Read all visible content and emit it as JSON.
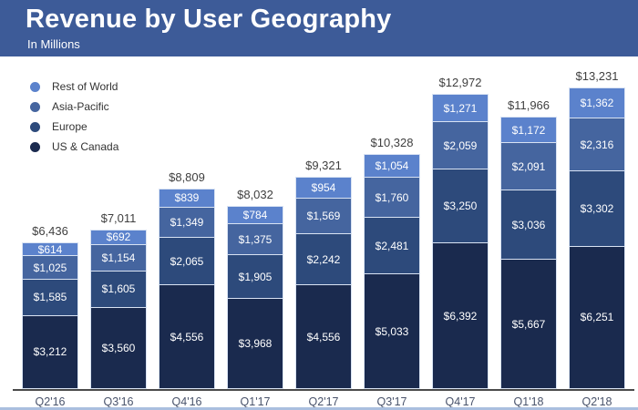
{
  "header": {
    "title": "Revenue by User Geography",
    "subtitle": "In Millions"
  },
  "colors": {
    "header_bg": "#3d5b98",
    "axis_line": "#4a4a4a",
    "total_label": "#3f3f3f",
    "category_label": "#49536b",
    "segment_border": "#d9e3f3",
    "bottom_strip": "#aabfdf"
  },
  "chart_data": {
    "type": "bar",
    "stacked": true,
    "title": "Revenue by User Geography",
    "subtitle": "In Millions",
    "unit": "USD millions",
    "value_prefix": "$",
    "legend_position": "top-left",
    "grid": false,
    "categories": [
      "Q2'16",
      "Q3'16",
      "Q4'16",
      "Q1'17",
      "Q2'17",
      "Q3'17",
      "Q4'17",
      "Q1'18",
      "Q2'18"
    ],
    "series": [
      {
        "name": "Rest of World",
        "color": "#5b82cc",
        "values": [
          614,
          692,
          839,
          784,
          954,
          1054,
          1271,
          1172,
          1362
        ]
      },
      {
        "name": "Asia-Pacific",
        "color": "#45659f",
        "values": [
          1025,
          1154,
          1349,
          1375,
          1569,
          1760,
          2059,
          2091,
          2316
        ]
      },
      {
        "name": "Europe",
        "color": "#2d4a7b",
        "values": [
          1585,
          1605,
          2065,
          1905,
          2242,
          2481,
          3250,
          3036,
          3302
        ]
      },
      {
        "name": "US & Canada",
        "color": "#1a2a4e",
        "values": [
          3212,
          3560,
          4556,
          3968,
          4556,
          5033,
          6392,
          5667,
          6251
        ]
      }
    ],
    "totals": [
      6436,
      7011,
      8809,
      8032,
      9321,
      10328,
      12972,
      11966,
      13231
    ]
  }
}
